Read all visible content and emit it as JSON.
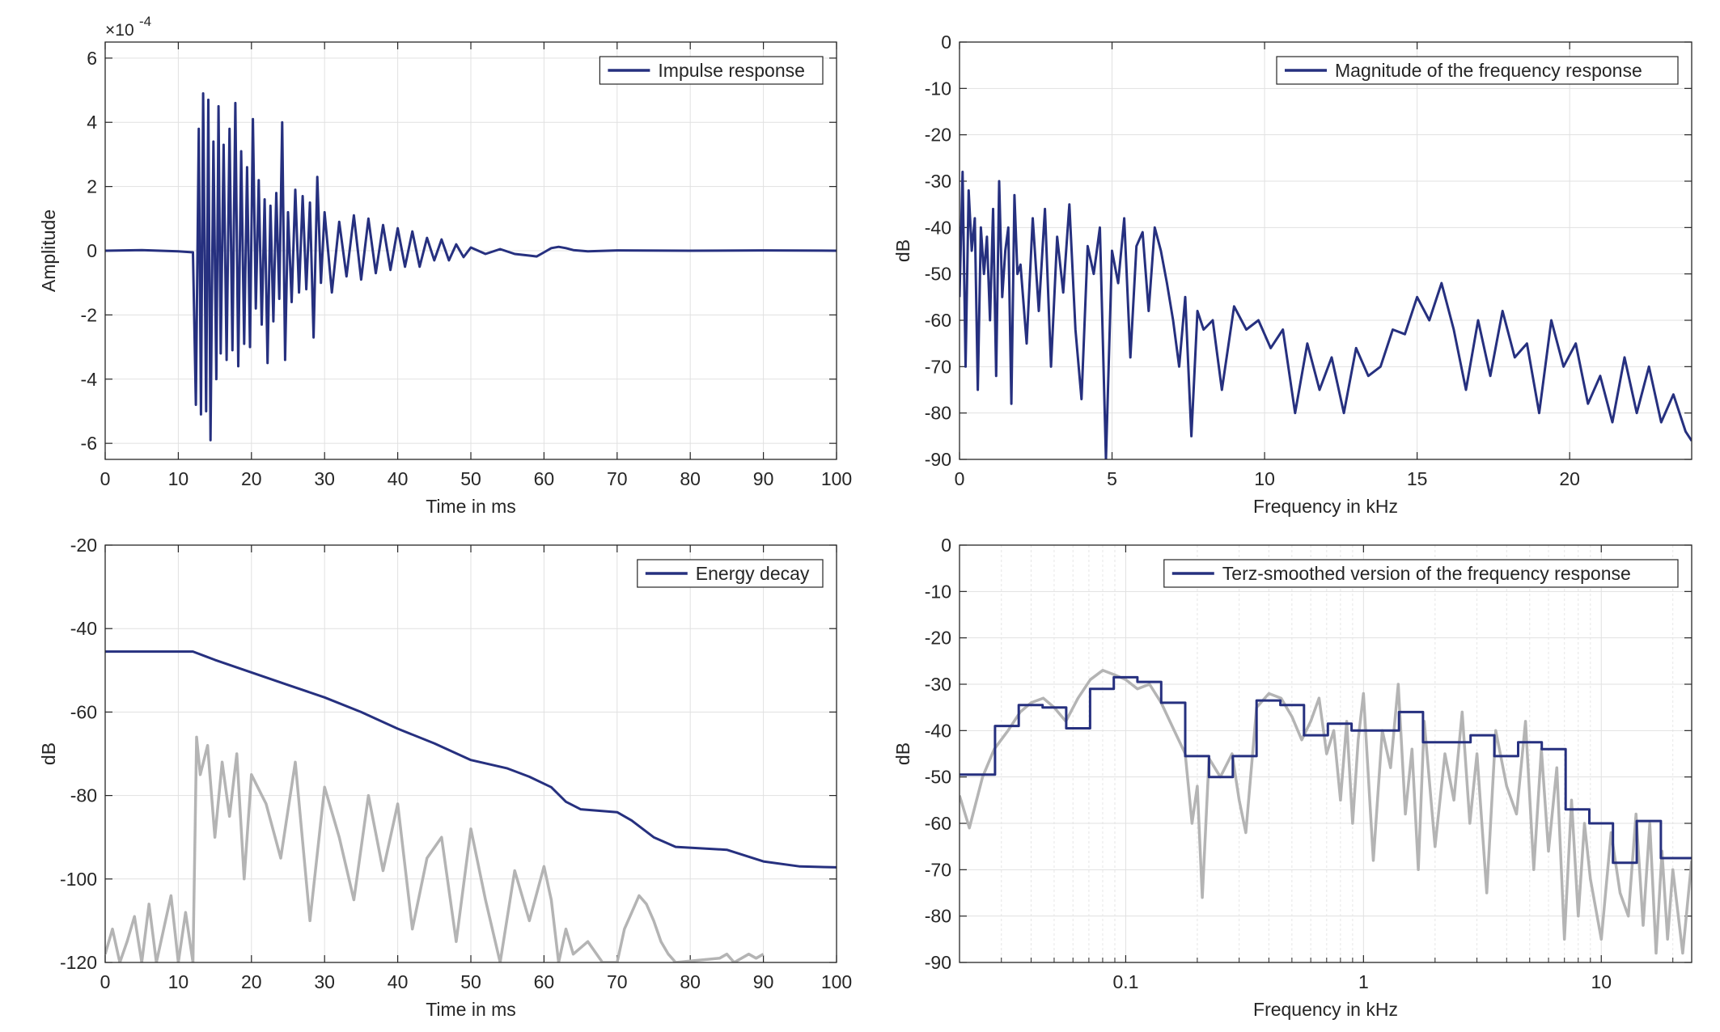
{
  "colors": {
    "series": "#26307f",
    "reference": "#b4b4b4",
    "grid": "#e1e1e1",
    "axis": "#262626"
  },
  "chart_data": [
    {
      "type": "line",
      "legend": "Impulse response",
      "legend_location": "top-right",
      "xlabel": "Time in ms",
      "ylabel": "Amplitude",
      "exponent_label": "×10",
      "exponent_value": "-4",
      "xlim": [
        0,
        100
      ],
      "ylim": [
        -6.5,
        6.5
      ],
      "xticks": [
        0,
        10,
        20,
        30,
        40,
        50,
        60,
        70,
        80,
        90,
        100
      ],
      "yticks": [
        -6,
        -4,
        -2,
        0,
        2,
        4,
        6
      ],
      "grid": true,
      "series": [
        {
          "name": "Impulse response",
          "x": [
            0,
            5,
            10,
            12,
            12.4,
            12.8,
            13.1,
            13.4,
            13.8,
            14.1,
            14.4,
            14.8,
            15.2,
            15.5,
            15.8,
            16.2,
            16.6,
            17,
            17.4,
            17.8,
            18.2,
            18.6,
            19,
            19.4,
            19.8,
            20.2,
            20.6,
            21,
            21.4,
            21.8,
            22.2,
            22.6,
            23,
            23.4,
            23.8,
            24.2,
            24.6,
            25,
            25.5,
            26,
            26.5,
            27,
            27.5,
            28,
            28.5,
            29,
            29.5,
            30,
            31,
            32,
            33,
            34,
            35,
            36,
            37,
            38,
            39,
            40,
            41,
            42,
            43,
            44,
            45,
            46,
            47,
            48,
            49,
            50,
            52,
            54,
            56,
            58,
            59,
            60,
            61,
            62,
            63,
            64,
            66,
            70,
            80,
            90,
            100
          ],
          "y": [
            0,
            0.02,
            -0.02,
            -0.05,
            -4.8,
            3.8,
            -5.1,
            4.9,
            -5,
            4.7,
            -5.9,
            3.4,
            -4,
            4.5,
            -3.2,
            3.3,
            -3.4,
            3.8,
            -3.1,
            4.6,
            -3.6,
            3.1,
            -2.9,
            2.6,
            -3,
            4.1,
            -1.8,
            2.2,
            -2.3,
            1.6,
            -3.5,
            1.4,
            -2.2,
            1.8,
            -1.5,
            4,
            -3.4,
            1.2,
            -1.6,
            1.9,
            -1.3,
            1.7,
            -1.2,
            1.5,
            -2.7,
            2.3,
            -1,
            1.2,
            -1.3,
            0.9,
            -0.8,
            1.1,
            -0.9,
            1,
            -0.7,
            0.8,
            -0.6,
            0.7,
            -0.5,
            0.6,
            -0.5,
            0.4,
            -0.3,
            0.35,
            -0.3,
            0.2,
            -0.2,
            0.1,
            -0.1,
            0.05,
            -0.1,
            -0.15,
            -0.18,
            -0.05,
            0.08,
            0.12,
            0.08,
            0.02,
            -0.02,
            0.01,
            0,
            0.01,
            0
          ]
        }
      ]
    },
    {
      "type": "line",
      "legend": "Magnitude of the frequency response",
      "legend_location": "top-right",
      "xlabel": "Frequency in kHz",
      "ylabel": "dB",
      "xlim": [
        0,
        24
      ],
      "ylim": [
        -90,
        0
      ],
      "xticks": [
        0,
        5,
        10,
        15,
        20
      ],
      "yticks": [
        0,
        -10,
        -20,
        -30,
        -40,
        -50,
        -60,
        -70,
        -80,
        -90
      ],
      "grid": true,
      "series": [
        {
          "name": "Magnitude of the frequency response",
          "x": [
            0,
            0.1,
            0.2,
            0.3,
            0.4,
            0.5,
            0.6,
            0.7,
            0.8,
            0.9,
            1,
            1.1,
            1.2,
            1.3,
            1.4,
            1.5,
            1.6,
            1.7,
            1.8,
            1.9,
            2,
            2.2,
            2.4,
            2.6,
            2.8,
            3,
            3.2,
            3.4,
            3.6,
            3.8,
            4,
            4.2,
            4.4,
            4.6,
            4.8,
            5,
            5.2,
            5.4,
            5.6,
            5.8,
            6,
            6.2,
            6.4,
            6.6,
            6.8,
            7,
            7.2,
            7.4,
            7.6,
            7.8,
            8,
            8.3,
            8.6,
            9,
            9.4,
            9.8,
            10.2,
            10.6,
            11,
            11.4,
            11.8,
            12.2,
            12.6,
            13,
            13.4,
            13.8,
            14.2,
            14.6,
            15,
            15.4,
            15.8,
            16.2,
            16.6,
            17,
            17.4,
            17.8,
            18.2,
            18.6,
            19,
            19.4,
            19.8,
            20.2,
            20.6,
            21,
            21.4,
            21.8,
            22.2,
            22.6,
            23,
            23.4,
            23.8,
            24
          ],
          "y": [
            -55,
            -28,
            -70,
            -32,
            -45,
            -38,
            -75,
            -40,
            -50,
            -42,
            -60,
            -36,
            -72,
            -30,
            -55,
            -45,
            -40,
            -78,
            -33,
            -50,
            -48,
            -65,
            -38,
            -58,
            -36,
            -70,
            -42,
            -54,
            -35,
            -62,
            -77,
            -44,
            -50,
            -40,
            -90,
            -45,
            -52,
            -38,
            -68,
            -44,
            -41,
            -58,
            -40,
            -45,
            -52,
            -60,
            -70,
            -55,
            -85,
            -58,
            -62,
            -60,
            -75,
            -57,
            -62,
            -60,
            -66,
            -62,
            -80,
            -65,
            -75,
            -68,
            -80,
            -66,
            -72,
            -70,
            -62,
            -63,
            -55,
            -60,
            -52,
            -62,
            -75,
            -60,
            -72,
            -58,
            -68,
            -65,
            -80,
            -60,
            -70,
            -65,
            -78,
            -72,
            -82,
            -68,
            -80,
            -70,
            -82,
            -76,
            -84,
            -86
          ]
        }
      ]
    },
    {
      "type": "line",
      "legend": "Energy decay",
      "legend_location": "top-right",
      "xlabel": "Time in ms",
      "ylabel": "dB",
      "xlim": [
        0,
        100
      ],
      "ylim": [
        -120,
        -20
      ],
      "xticks": [
        0,
        10,
        20,
        30,
        40,
        50,
        60,
        70,
        80,
        90,
        100
      ],
      "yticks": [
        -20,
        -40,
        -60,
        -80,
        -100,
        -120
      ],
      "grid": true,
      "series": [
        {
          "name": "Energy decay",
          "x": [
            0,
            12,
            15,
            20,
            25,
            30,
            35,
            40,
            45,
            50,
            55,
            58,
            61,
            63,
            65,
            70,
            72,
            75,
            78,
            85,
            90,
            95,
            100
          ],
          "y": [
            -45.5,
            -45.5,
            -47.5,
            -50.5,
            -53.5,
            -56.5,
            -60,
            -64,
            -67.5,
            -71.5,
            -73.5,
            -75.5,
            -78,
            -81.5,
            -83.3,
            -84,
            -86,
            -90,
            -92.3,
            -93,
            -95.8,
            -97,
            -97.2
          ]
        },
        {
          "x": [
            0,
            1,
            2,
            3,
            4,
            5,
            6,
            7,
            8,
            9,
            10,
            11,
            12,
            12.5,
            13,
            14,
            15,
            16,
            17,
            18,
            19,
            20,
            22,
            24,
            26,
            28,
            30,
            32,
            34,
            36,
            38,
            40,
            42,
            44,
            46,
            48,
            50,
            52,
            54,
            56,
            58,
            60,
            61,
            62,
            63,
            64,
            66,
            68,
            70,
            71,
            72,
            73,
            74,
            75,
            76,
            77,
            78,
            84,
            85,
            86,
            88,
            89,
            90
          ],
          "y": [
            -118,
            -112,
            -120,
            -115,
            -109,
            -120,
            -106,
            -120,
            -112,
            -104,
            -120,
            -108,
            -120,
            -66,
            -75,
            -68,
            -90,
            -72,
            -85,
            -70,
            -100,
            -75,
            -82,
            -95,
            -72,
            -110,
            -78,
            -90,
            -105,
            -80,
            -98,
            -82,
            -112,
            -95,
            -90,
            -115,
            -88,
            -105,
            -120,
            -98,
            -110,
            -97,
            -105,
            -120,
            -112,
            -118,
            -115,
            -120,
            -120,
            -112,
            -108,
            -104,
            -106,
            -110,
            -115,
            -118,
            -120,
            -119,
            -118,
            -120,
            -118,
            -119,
            -118
          ]
        }
      ]
    },
    {
      "type": "line",
      "legend": "Terz-smoothed version of the frequency response",
      "legend_location": "top-right",
      "xlabel": "Frequency in kHz",
      "ylabel": "dB",
      "xscale": "log",
      "xlim": [
        0.02,
        24
      ],
      "ylim": [
        -90,
        0
      ],
      "xticks": [
        0.1,
        1,
        10
      ],
      "xticklabels": [
        "0.1",
        "1",
        "10"
      ],
      "yticks": [
        0,
        -10,
        -20,
        -30,
        -40,
        -50,
        -60,
        -70,
        -80,
        -90
      ],
      "grid": true,
      "series": [
        {
          "name": "Terz-smoothed version of the frequency response",
          "step_edges": [
            0.02,
            0.0282,
            0.0355,
            0.0447,
            0.0562,
            0.0708,
            0.0891,
            0.112,
            0.141,
            0.178,
            0.224,
            0.282,
            0.355,
            0.447,
            0.562,
            0.708,
            0.891,
            1.12,
            1.41,
            1.78,
            2.24,
            2.82,
            3.55,
            4.47,
            5.62,
            7.08,
            8.91,
            11.2,
            14.1,
            17.8,
            24
          ],
          "values": [
            -49.5,
            -39,
            -34.5,
            -35,
            -39.5,
            -31,
            -28.5,
            -29.5,
            -34,
            -45.5,
            -50,
            -45.5,
            -33.5,
            -34.5,
            -41,
            -38.5,
            -40,
            -40,
            -36,
            -42.5,
            -42.5,
            -41,
            -45.5,
            -42.5,
            -44,
            -57,
            -60,
            -68.5,
            -59.5,
            -67.5
          ]
        },
        {
          "x": [
            0.02,
            0.022,
            0.025,
            0.028,
            0.032,
            0.036,
            0.04,
            0.045,
            0.05,
            0.056,
            0.063,
            0.071,
            0.08,
            0.09,
            0.1,
            0.112,
            0.126,
            0.141,
            0.16,
            0.178,
            0.19,
            0.2,
            0.21,
            0.224,
            0.25,
            0.28,
            0.3,
            0.32,
            0.355,
            0.4,
            0.45,
            0.5,
            0.55,
            0.6,
            0.65,
            0.7,
            0.75,
            0.8,
            0.85,
            0.9,
            0.95,
            1,
            1.1,
            1.2,
            1.3,
            1.4,
            1.5,
            1.6,
            1.7,
            1.8,
            2,
            2.2,
            2.4,
            2.6,
            2.8,
            3,
            3.3,
            3.6,
            4,
            4.4,
            4.8,
            5.2,
            5.6,
            6,
            6.5,
            7,
            7.5,
            8,
            8.5,
            9,
            10,
            11,
            12,
            13,
            14,
            15,
            16,
            17,
            18,
            19,
            20,
            22,
            24
          ],
          "y": [
            -54,
            -61,
            -50,
            -44,
            -40,
            -36,
            -34,
            -33,
            -35,
            -38,
            -33,
            -29,
            -27,
            -28,
            -29,
            -31,
            -30,
            -34,
            -40,
            -45,
            -60,
            -52,
            -76,
            -46,
            -50,
            -45,
            -55,
            -62,
            -35,
            -32,
            -33,
            -37,
            -42,
            -38,
            -33,
            -45,
            -40,
            -55,
            -38,
            -60,
            -42,
            -32,
            -68,
            -40,
            -48,
            -30,
            -58,
            -44,
            -70,
            -38,
            -65,
            -45,
            -55,
            -36,
            -60,
            -45,
            -75,
            -40,
            -52,
            -58,
            -38,
            -70,
            -44,
            -66,
            -48,
            -85,
            -55,
            -80,
            -60,
            -72,
            -85,
            -62,
            -75,
            -80,
            -58,
            -82,
            -60,
            -88,
            -66,
            -85,
            -70,
            -88,
            -68
          ]
        }
      ]
    }
  ]
}
